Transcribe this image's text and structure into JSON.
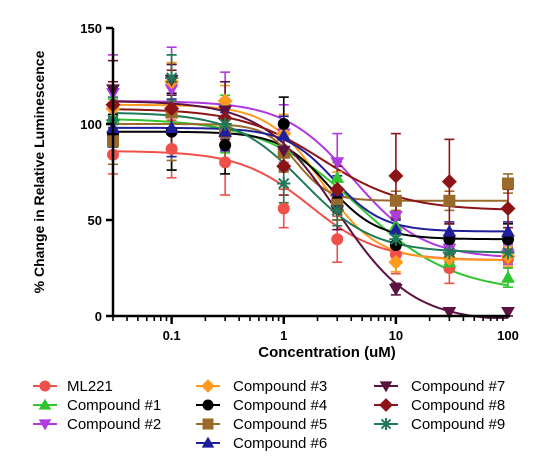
{
  "chart_data": {
    "type": "scatter",
    "xlabel": "Concentration (uM)",
    "ylabel": "% Change in Relative Luminescence",
    "x_scale": "log",
    "xlim": [
      0.03,
      100
    ],
    "ylim": [
      0,
      150
    ],
    "x_ticks": [
      0.1,
      1,
      10,
      100
    ],
    "x_tick_labels": [
      "0.1",
      "1",
      "10",
      "100"
    ],
    "y_ticks": [
      0,
      50,
      100,
      150
    ],
    "y_tick_labels": [
      "0",
      "50",
      "100",
      "150"
    ],
    "x": [
      0.03,
      0.1,
      0.3,
      1,
      3,
      10,
      30,
      100
    ],
    "legend_position": "bottom",
    "series": [
      {
        "name": "ML221",
        "color": "#f0504a",
        "marker": "circle",
        "values": [
          84,
          87,
          80,
          56,
          40,
          32,
          25,
          30
        ],
        "errors": [
          10,
          15,
          17,
          10,
          12,
          10,
          8,
          5
        ],
        "fit": [
          86,
          29,
          1.7,
          1.4
        ]
      },
      {
        "name": "Compound #1",
        "color": "#2fc52f",
        "marker": "triangle-up",
        "values": [
          103,
          106,
          100,
          85,
          72,
          47,
          28,
          20
        ],
        "errors": [
          10,
          30,
          15,
          10,
          8,
          5,
          5,
          5
        ],
        "fit": [
          103,
          12,
          4.6,
          1.0
        ]
      },
      {
        "name": "Compound #2",
        "color": "#b03ae0",
        "marker": "triangle-down",
        "values": [
          116,
          118,
          107,
          95,
          80,
          52,
          35,
          32
        ],
        "errors": [
          20,
          22,
          20,
          15,
          15,
          8,
          5,
          5
        ],
        "fit": [
          112,
          30,
          4.2,
          1.4
        ]
      },
      {
        "name": "Compound #3",
        "color": "#ff9a1f",
        "marker": "diamond",
        "values": [
          108,
          122,
          112,
          95,
          65,
          28,
          30,
          31
        ],
        "errors": [
          10,
          10,
          8,
          10,
          10,
          5,
          5,
          5
        ],
        "fit": [
          110,
          29,
          2.2,
          1.8
        ]
      },
      {
        "name": "Compound #4",
        "color": "#000000",
        "marker": "circle",
        "values": [
          95,
          96,
          89,
          100,
          60,
          37,
          40,
          40
        ],
        "errors": [
          10,
          20,
          15,
          14,
          10,
          8,
          8,
          8
        ],
        "fit": [
          96,
          40,
          2.5,
          2.0
        ]
      },
      {
        "name": "Compound #5",
        "color": "#9a6a2a",
        "marker": "square",
        "values": [
          91,
          106,
          96,
          85,
          58,
          60,
          60,
          69
        ],
        "errors": [
          12,
          25,
          15,
          10,
          8,
          5,
          5,
          5
        ],
        "fit": [
          100,
          60,
          1.3,
          3.0
        ]
      },
      {
        "name": "Compound #6",
        "color": "#1f1f9c",
        "marker": "triangle-up",
        "values": [
          98,
          98,
          96,
          94,
          65,
          45,
          44,
          44
        ],
        "errors": [
          10,
          15,
          10,
          10,
          8,
          5,
          5,
          5
        ],
        "fit": [
          98,
          44,
          2.8,
          2.0
        ]
      },
      {
        "name": "Compound #7",
        "color": "#5a1240",
        "marker": "triangle-down",
        "values": [
          118,
          123,
          107,
          86,
          55,
          14,
          2,
          2
        ],
        "errors": [
          15,
          8,
          15,
          10,
          10,
          3,
          2,
          2
        ],
        "fit": [
          112,
          -3,
          3.0,
          1.3
        ]
      },
      {
        "name": "Compound #8",
        "color": "#8c1416",
        "marker": "diamond",
        "values": [
          110,
          108,
          103,
          78,
          66,
          73,
          70,
          56
        ],
        "errors": [
          12,
          20,
          10,
          15,
          12,
          22,
          22,
          10
        ],
        "fit": [
          108,
          55,
          2.2,
          1.2
        ]
      },
      {
        "name": "Compound #9",
        "color": "#1f7a5a",
        "marker": "star",
        "values": [
          102,
          124,
          100,
          69,
          55,
          40,
          33,
          33
        ],
        "errors": [
          12,
          12,
          10,
          10,
          8,
          5,
          5,
          5
        ],
        "fit": [
          106,
          33,
          1.5,
          1.4
        ]
      }
    ]
  }
}
